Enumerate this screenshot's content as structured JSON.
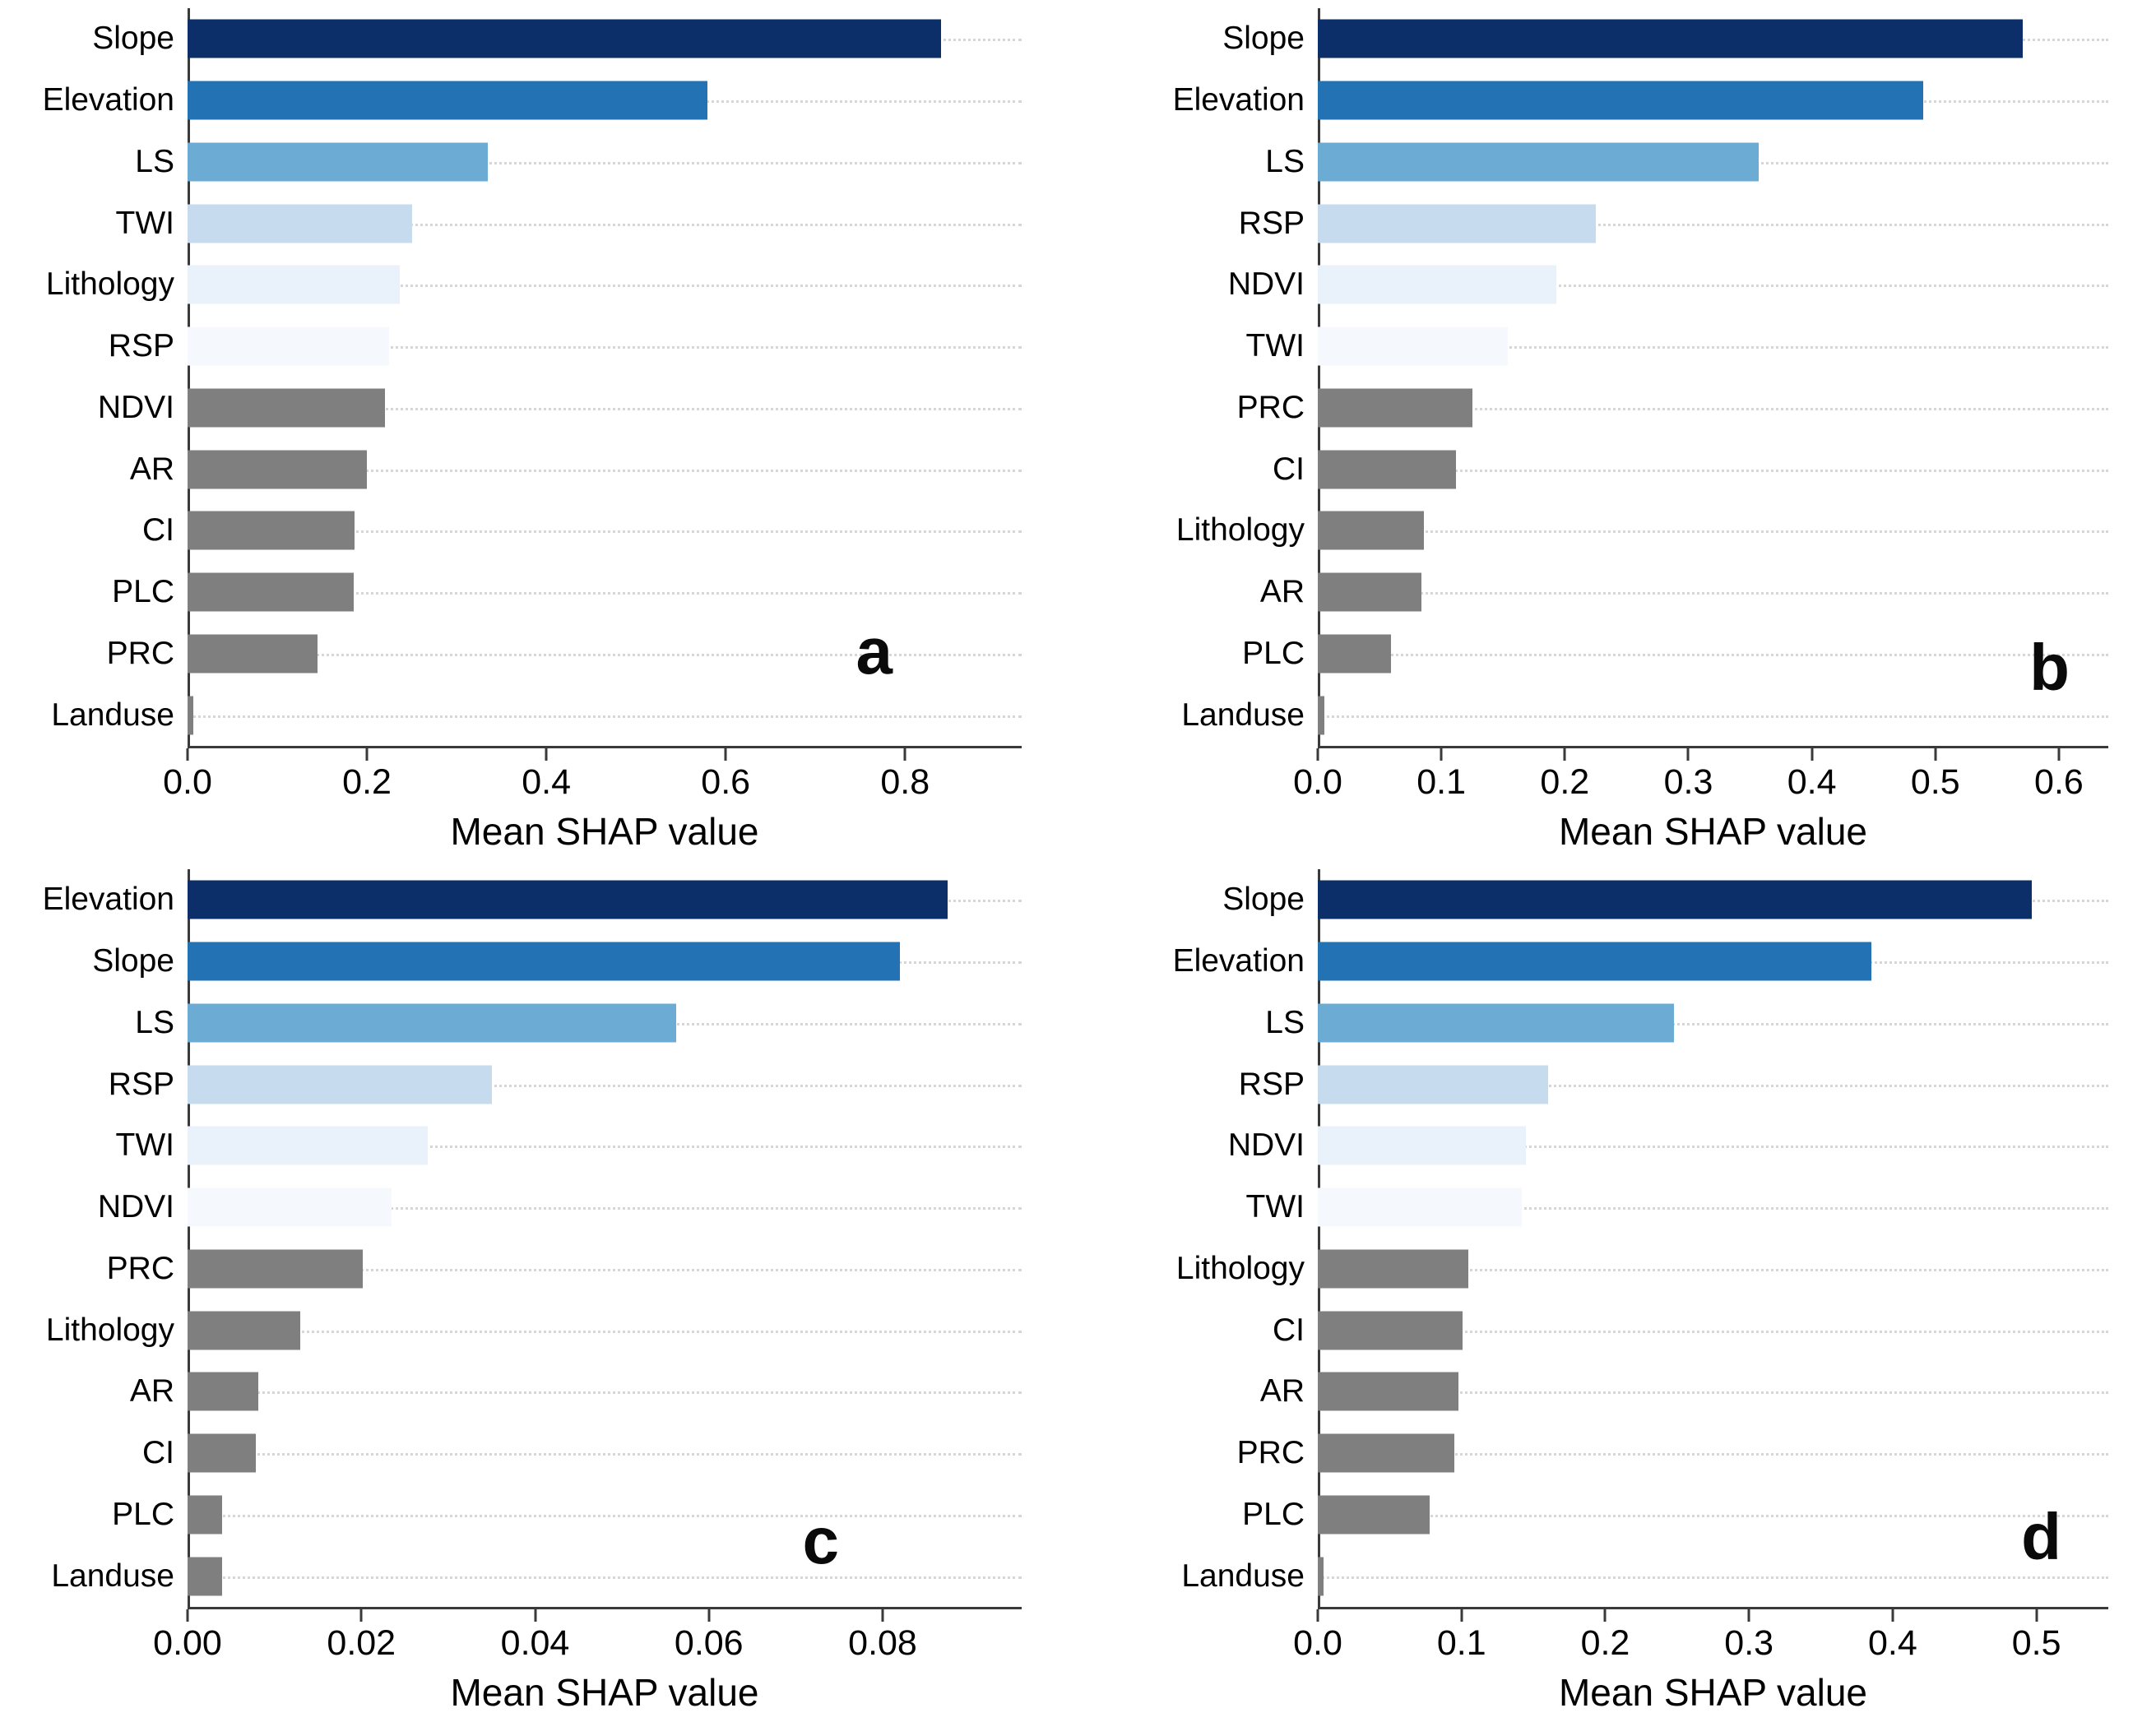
{
  "figure": {
    "background_color": "#ffffff",
    "xlabel_shared": "Mean SHAP value"
  },
  "palette": {
    "bar_blues_top_to_bottom": [
      "#0d2f69",
      "#2272b4",
      "#6babd4",
      "#c6dbee",
      "#e9f1fa",
      "#f5f9fd"
    ],
    "bar_gray": "#7f7f7f",
    "axis_color": "#3a3a3a",
    "gridline_color": "#d6d6d6",
    "text_color": "#000000"
  },
  "chart_data": [
    {
      "type": "bar",
      "orientation": "horizontal",
      "panel_label": "a",
      "title": "",
      "xlabel": "Mean SHAP value",
      "ylabel": "",
      "xlim": [
        0,
        0.93
      ],
      "grid": "dotted-horizontal",
      "legend": "none",
      "xtick_values": [
        0,
        0.2,
        0.4,
        0.6,
        0.8
      ],
      "xtick_labels": [
        "0.0",
        "0.2",
        "0.4",
        "0.6",
        "0.8"
      ],
      "categories": [
        "Slope",
        "Elevation",
        "LS",
        "TWI",
        "Lithology",
        "RSP",
        "NDVI",
        "AR",
        "CI",
        "PLC",
        "PRC",
        "Landuse"
      ],
      "values": [
        0.84,
        0.58,
        0.335,
        0.25,
        0.237,
        0.225,
        0.22,
        0.2,
        0.186,
        0.185,
        0.145,
        0.006
      ]
    },
    {
      "type": "bar",
      "orientation": "horizontal",
      "panel_label": "b",
      "title": "",
      "xlabel": "Mean SHAP value",
      "ylabel": "",
      "xlim": [
        0,
        0.64
      ],
      "grid": "dotted-horizontal",
      "legend": "none",
      "xtick_values": [
        0,
        0.1,
        0.2,
        0.3,
        0.4,
        0.5,
        0.6
      ],
      "xtick_labels": [
        "0.0",
        "0.1",
        "0.2",
        "0.3",
        "0.4",
        "0.5",
        "0.6"
      ],
      "categories": [
        "Slope",
        "Elevation",
        "LS",
        "RSP",
        "NDVI",
        "TWI",
        "PRC",
        "CI",
        "Lithology",
        "AR",
        "PLC",
        "Landuse"
      ],
      "values": [
        0.571,
        0.49,
        0.357,
        0.225,
        0.193,
        0.154,
        0.125,
        0.112,
        0.086,
        0.084,
        0.059,
        0.005
      ]
    },
    {
      "type": "bar",
      "orientation": "horizontal",
      "panel_label": "c",
      "title": "",
      "xlabel": "Mean SHAP value",
      "ylabel": "",
      "xlim": [
        0,
        0.096
      ],
      "grid": "dotted-horizontal",
      "legend": "none",
      "xtick_values": [
        0,
        0.02,
        0.04,
        0.06,
        0.08
      ],
      "xtick_labels": [
        "0.00",
        "0.02",
        "0.04",
        "0.06",
        "0.08"
      ],
      "categories": [
        "Elevation",
        "Slope",
        "LS",
        "RSP",
        "TWI",
        "NDVI",
        "PRC",
        "Lithology",
        "AR",
        "CI",
        "PLC",
        "Landuse"
      ],
      "values": [
        0.0875,
        0.082,
        0.0562,
        0.035,
        0.0276,
        0.0235,
        0.0202,
        0.013,
        0.0081,
        0.0079,
        0.004,
        0.004
      ]
    },
    {
      "type": "bar",
      "orientation": "horizontal",
      "panel_label": "d",
      "title": "",
      "xlabel": "Mean SHAP value",
      "ylabel": "",
      "xlim": [
        0,
        0.55
      ],
      "grid": "dotted-horizontal",
      "legend": "none",
      "xtick_values": [
        0,
        0.1,
        0.2,
        0.3,
        0.4,
        0.5
      ],
      "xtick_labels": [
        "0.0",
        "0.1",
        "0.2",
        "0.3",
        "0.4",
        "0.5"
      ],
      "categories": [
        "Slope",
        "Elevation",
        "LS",
        "RSP",
        "NDVI",
        "TWI",
        "Lithology",
        "CI",
        "AR",
        "PRC",
        "PLC",
        "Landuse"
      ],
      "values": [
        0.497,
        0.385,
        0.248,
        0.16,
        0.145,
        0.142,
        0.105,
        0.101,
        0.098,
        0.095,
        0.078,
        0.004
      ]
    }
  ]
}
